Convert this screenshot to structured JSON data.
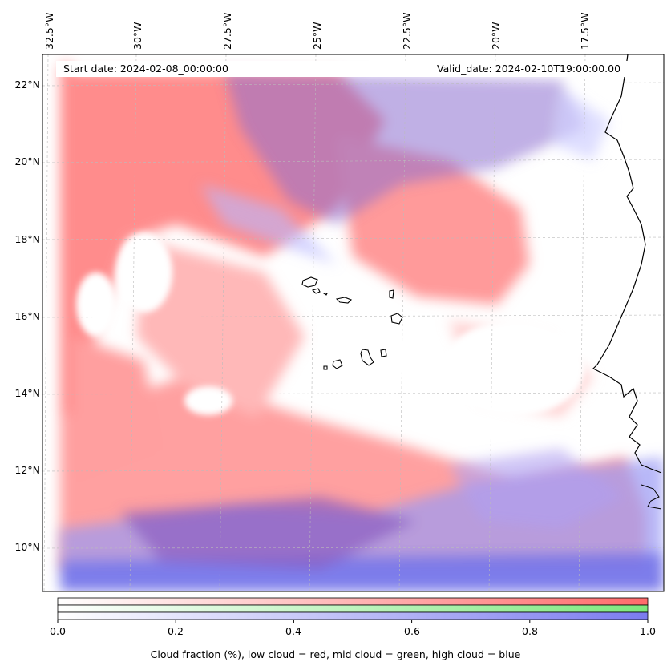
{
  "header": {
    "start_date": "Start date: 2024-02-08_00:00:00",
    "valid_date": "Valid_date: 2024-02-10T19:00:00.00"
  },
  "lon_labels": [
    "32.5°W",
    "30°W",
    "27.5°W",
    "25°W",
    "22.5°W",
    "20°W",
    "17.5°W"
  ],
  "lat_labels": [
    "22°N",
    "20°N",
    "18°N",
    "16°N",
    "14°N",
    "12°N",
    "10°N"
  ],
  "colorbar": {
    "ticks": [
      "0.0",
      "0.2",
      "0.4",
      "0.6",
      "0.8",
      "1.0"
    ],
    "label": "Cloud fraction (%), low cloud = red, mid cloud = green, high cloud = blue",
    "colors": {
      "low": "#ff6b6b",
      "mid": "#7de87d",
      "high": "#7b7bef"
    }
  },
  "islands": [
    "santo-antao",
    "sao-vicente",
    "santa-luzia",
    "sao-nicolau",
    "sal",
    "boa-vista",
    "santiago",
    "fogo",
    "brava",
    "maio"
  ]
}
